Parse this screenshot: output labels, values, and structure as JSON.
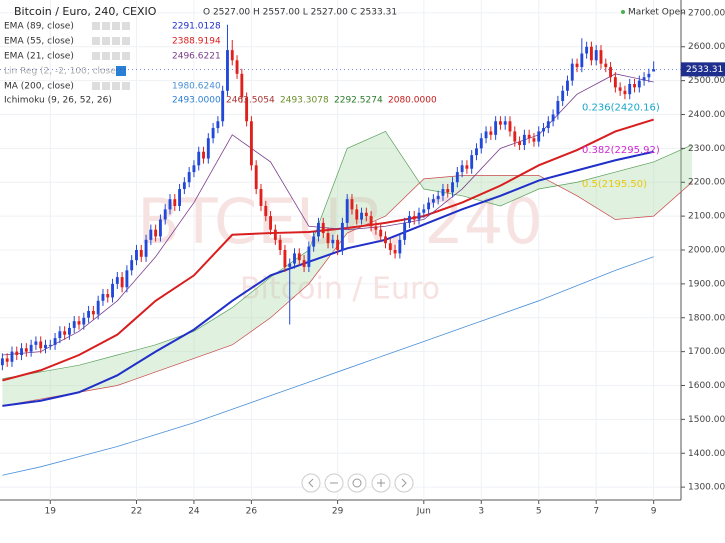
{
  "chart_data": {
    "type": "candlestick",
    "title": "Bitcoin / Euro, 240, CEXIO",
    "ohlc_text": "O 2527.00 H 2557.00 L 2527.00 C 2533.31",
    "status": "Market Open",
    "last_price": {
      "value": 2533.31,
      "label": "2533.31"
    },
    "watermark": [
      "BTCEUR, 240",
      "Bitcoin / Euro"
    ],
    "up_color": "#2248d8",
    "down_color": "#e0201c",
    "xlim": [
      -0.5,
      141.5
    ],
    "ylim": [
      1262,
      2738
    ],
    "grid": true,
    "xticks": [
      {
        "value": 10,
        "label": "19"
      },
      {
        "value": 28,
        "label": "22"
      },
      {
        "value": 40,
        "label": "24"
      },
      {
        "value": 52,
        "label": "26"
      },
      {
        "value": 70,
        "label": "29"
      },
      {
        "value": 88,
        "label": "Jun"
      },
      {
        "value": 100,
        "label": "3"
      },
      {
        "value": 112,
        "label": "5"
      },
      {
        "value": 124,
        "label": "7"
      },
      {
        "value": 136,
        "label": "9"
      }
    ],
    "yticks": [
      {
        "value": 1300,
        "label": "1300.00"
      },
      {
        "value": 1400,
        "label": "1400.00"
      },
      {
        "value": 1500,
        "label": "1500.00"
      },
      {
        "value": 1600,
        "label": "1600.00"
      },
      {
        "value": 1700,
        "label": "1700.00"
      },
      {
        "value": 1800,
        "label": "1800.00"
      },
      {
        "value": 1900,
        "label": "1900.00"
      },
      {
        "value": 2000,
        "label": "2000.00"
      },
      {
        "value": 2100,
        "label": "2100.00"
      },
      {
        "value": 2200,
        "label": "2200.00"
      },
      {
        "value": 2300,
        "label": "2300.00"
      },
      {
        "value": 2400,
        "label": "2400.00"
      },
      {
        "value": 2500,
        "label": "2500.00"
      },
      {
        "value": 2600,
        "label": "2600.00"
      },
      {
        "value": 2700,
        "label": "2700.00"
      }
    ],
    "ohlc": [
      [
        1660,
        1695,
        1645,
        1680
      ],
      [
        1680,
        1695,
        1655,
        1670
      ],
      [
        1670,
        1715,
        1655,
        1700
      ],
      [
        1700,
        1715,
        1675,
        1690
      ],
      [
        1690,
        1725,
        1675,
        1710
      ],
      [
        1710,
        1725,
        1685,
        1700
      ],
      [
        1700,
        1735,
        1685,
        1720
      ],
      [
        1720,
        1745,
        1705,
        1730
      ],
      [
        1730,
        1745,
        1695,
        1710
      ],
      [
        1710,
        1735,
        1695,
        1720
      ],
      [
        1720,
        1735,
        1705,
        1720
      ],
      [
        1720,
        1755,
        1705,
        1740
      ],
      [
        1740,
        1775,
        1725,
        1760
      ],
      [
        1760,
        1775,
        1735,
        1750
      ],
      [
        1750,
        1785,
        1735,
        1770
      ],
      [
        1770,
        1805,
        1755,
        1790
      ],
      [
        1790,
        1805,
        1765,
        1780
      ],
      [
        1780,
        1815,
        1765,
        1800
      ],
      [
        1800,
        1835,
        1785,
        1820
      ],
      [
        1820,
        1835,
        1795,
        1810
      ],
      [
        1810,
        1865,
        1795,
        1850
      ],
      [
        1850,
        1885,
        1835,
        1870
      ],
      [
        1870,
        1885,
        1845,
        1860
      ],
      [
        1860,
        1915,
        1845,
        1900
      ],
      [
        1900,
        1935,
        1885,
        1920
      ],
      [
        1920,
        1935,
        1875,
        1890
      ],
      [
        1890,
        1955,
        1875,
        1940
      ],
      [
        1940,
        1985,
        1925,
        1970
      ],
      [
        1970,
        2015,
        1955,
        2000
      ],
      [
        2000,
        2015,
        1965,
        1980
      ],
      [
        1980,
        2045,
        1965,
        2030
      ],
      [
        2030,
        2075,
        2015,
        2060
      ],
      [
        2060,
        2075,
        2025,
        2040
      ],
      [
        2040,
        2105,
        2025,
        2090
      ],
      [
        2090,
        2135,
        2075,
        2120
      ],
      [
        2120,
        2165,
        2105,
        2150
      ],
      [
        2150,
        2165,
        2115,
        2130
      ],
      [
        2130,
        2195,
        2115,
        2180
      ],
      [
        2180,
        2215,
        2165,
        2200
      ],
      [
        2200,
        2245,
        2185,
        2230
      ],
      [
        2230,
        2265,
        2215,
        2250
      ],
      [
        2250,
        2305,
        2235,
        2290
      ],
      [
        2290,
        2305,
        2255,
        2270
      ],
      [
        2270,
        2345,
        2255,
        2330
      ],
      [
        2330,
        2375,
        2315,
        2360
      ],
      [
        2360,
        2395,
        2345,
        2380
      ],
      [
        2380,
        2485,
        2365,
        2470
      ],
      [
        2470,
        2665,
        2455,
        2590
      ],
      [
        2590,
        2620,
        2545,
        2560
      ],
      [
        2560,
        2575,
        2505,
        2520
      ],
      [
        2520,
        2535,
        2435,
        2450
      ],
      [
        2450,
        2465,
        2365,
        2380
      ],
      [
        2380,
        2395,
        2235,
        2250
      ],
      [
        2250,
        2265,
        2165,
        2180
      ],
      [
        2180,
        2195,
        2115,
        2130
      ],
      [
        2130,
        2145,
        2085,
        2100
      ],
      [
        2100,
        2115,
        2045,
        2060
      ],
      [
        2060,
        2075,
        2015,
        2030
      ],
      [
        2030,
        2045,
        1985,
        2000
      ],
      [
        2000,
        2015,
        1935,
        1950
      ],
      [
        1950,
        1975,
        1780,
        1960
      ],
      [
        1960,
        2005,
        1945,
        1990
      ],
      [
        1990,
        2005,
        1955,
        1970
      ],
      [
        1970,
        1985,
        1935,
        1950
      ],
      [
        1950,
        2025,
        1935,
        2010
      ],
      [
        2010,
        2055,
        1995,
        2040
      ],
      [
        2040,
        2095,
        2025,
        2080
      ],
      [
        2080,
        2095,
        2035,
        2050
      ],
      [
        2050,
        2065,
        2005,
        2020
      ],
      [
        2020,
        2045,
        2005,
        2030
      ],
      [
        2030,
        2045,
        1985,
        2000
      ],
      [
        2000,
        2095,
        1985,
        2080
      ],
      [
        2080,
        2165,
        2065,
        2150
      ],
      [
        2150,
        2165,
        2105,
        2120
      ],
      [
        2120,
        2135,
        2075,
        2090
      ],
      [
        2090,
        2125,
        2075,
        2110
      ],
      [
        2110,
        2125,
        2085,
        2100
      ],
      [
        2100,
        2115,
        2055,
        2070
      ],
      [
        2070,
        2085,
        2045,
        2060
      ],
      [
        2060,
        2075,
        2025,
        2040
      ],
      [
        2040,
        2055,
        2005,
        2020
      ],
      [
        2020,
        2035,
        1985,
        2000
      ],
      [
        2000,
        2015,
        1975,
        1990
      ],
      [
        1990,
        2045,
        1975,
        2030
      ],
      [
        2030,
        2095,
        2015,
        2080
      ],
      [
        2080,
        2115,
        2065,
        2100
      ],
      [
        2100,
        2115,
        2075,
        2090
      ],
      [
        2090,
        2125,
        2075,
        2110
      ],
      [
        2110,
        2135,
        2095,
        2120
      ],
      [
        2120,
        2155,
        2105,
        2140
      ],
      [
        2140,
        2165,
        2125,
        2150
      ],
      [
        2150,
        2175,
        2135,
        2160
      ],
      [
        2160,
        2195,
        2145,
        2180
      ],
      [
        2180,
        2195,
        2155,
        2170
      ],
      [
        2170,
        2215,
        2155,
        2200
      ],
      [
        2200,
        2245,
        2185,
        2230
      ],
      [
        2230,
        2265,
        2215,
        2250
      ],
      [
        2250,
        2265,
        2225,
        2240
      ],
      [
        2240,
        2295,
        2225,
        2280
      ],
      [
        2280,
        2315,
        2265,
        2300
      ],
      [
        2300,
        2345,
        2285,
        2330
      ],
      [
        2330,
        2365,
        2315,
        2350
      ],
      [
        2350,
        2365,
        2325,
        2340
      ],
      [
        2340,
        2395,
        2325,
        2380
      ],
      [
        2380,
        2395,
        2355,
        2370
      ],
      [
        2370,
        2395,
        2355,
        2380
      ],
      [
        2380,
        2395,
        2335,
        2350
      ],
      [
        2350,
        2365,
        2305,
        2320
      ],
      [
        2320,
        2335,
        2295,
        2310
      ],
      [
        2310,
        2355,
        2295,
        2340
      ],
      [
        2340,
        2355,
        2315,
        2330
      ],
      [
        2330,
        2345,
        2305,
        2320
      ],
      [
        2320,
        2365,
        2305,
        2350
      ],
      [
        2350,
        2375,
        2335,
        2360
      ],
      [
        2360,
        2395,
        2345,
        2380
      ],
      [
        2380,
        2415,
        2365,
        2400
      ],
      [
        2400,
        2455,
        2385,
        2440
      ],
      [
        2440,
        2485,
        2425,
        2470
      ],
      [
        2470,
        2515,
        2455,
        2500
      ],
      [
        2500,
        2565,
        2485,
        2550
      ],
      [
        2550,
        2565,
        2525,
        2540
      ],
      [
        2540,
        2625,
        2525,
        2580
      ],
      [
        2580,
        2615,
        2565,
        2600
      ],
      [
        2600,
        2615,
        2545,
        2560
      ],
      [
        2560,
        2605,
        2545,
        2590
      ],
      [
        2590,
        2605,
        2535,
        2550
      ],
      [
        2550,
        2565,
        2525,
        2540
      ],
      [
        2540,
        2555,
        2495,
        2510
      ],
      [
        2510,
        2525,
        2465,
        2480
      ],
      [
        2480,
        2495,
        2455,
        2470
      ],
      [
        2470,
        2485,
        2445,
        2460
      ],
      [
        2460,
        2505,
        2445,
        2490
      ],
      [
        2490,
        2505,
        2465,
        2480
      ],
      [
        2480,
        2515,
        2465,
        2500
      ],
      [
        2500,
        2525,
        2485,
        2510
      ],
      [
        2510,
        2535,
        2495,
        2520
      ],
      [
        2527,
        2557,
        2527,
        2533.31
      ]
    ],
    "series": [
      {
        "name": "EMA (89, close)",
        "last": "2291.0128",
        "color": "#1f2fc8",
        "width": 2,
        "x": [
          0,
          8,
          16,
          24,
          32,
          40,
          48,
          56,
          64,
          72,
          80,
          88,
          96,
          104,
          112,
          120,
          128,
          136
        ],
        "values": [
          1540,
          1555,
          1580,
          1630,
          1700,
          1765,
          1850,
          1925,
          1965,
          2005,
          2030,
          2075,
          2120,
          2160,
          2205,
          2235,
          2265,
          2290
        ]
      },
      {
        "name": "EMA (55, close)",
        "last": "2388.9194",
        "color": "#d81e1e",
        "width": 2,
        "x": [
          0,
          8,
          16,
          24,
          32,
          40,
          48,
          56,
          64,
          72,
          80,
          88,
          96,
          104,
          112,
          120,
          128,
          136
        ],
        "values": [
          1615,
          1645,
          1690,
          1750,
          1850,
          1925,
          2045,
          2050,
          2053,
          2065,
          2080,
          2100,
          2140,
          2190,
          2250,
          2295,
          2350,
          2385
        ]
      },
      {
        "name": "EMA (21, close)",
        "last": "2496.6221",
        "color": "#7a3d8c",
        "width": 0.8,
        "x": [
          0,
          8,
          16,
          24,
          32,
          40,
          48,
          56,
          64,
          72,
          80,
          88,
          96,
          104,
          112,
          120,
          128,
          136
        ],
        "values": [
          1690,
          1700,
          1760,
          1850,
          1980,
          2140,
          2340,
          2260,
          2070,
          2060,
          2070,
          2090,
          2180,
          2300,
          2340,
          2460,
          2520,
          2496
        ]
      },
      {
        "name": "MA (200, close)",
        "last": "1980.6240",
        "color": "#4a90d9",
        "width": 0.8,
        "x": [
          0,
          8,
          16,
          24,
          32,
          40,
          48,
          56,
          64,
          72,
          80,
          88,
          96,
          104,
          112,
          120,
          128,
          136
        ],
        "values": [
          1335,
          1360,
          1390,
          1420,
          1455,
          1490,
          1530,
          1570,
          1610,
          1650,
          1690,
          1730,
          1770,
          1810,
          1850,
          1895,
          1940,
          1980
        ]
      }
    ],
    "lin_reg_label": "Lin Reg (2, -2, 100, close)",
    "ichimoku": {
      "name": "Ichimoku (9, 26, 52, 26)",
      "lasts": [
        "2493.0000",
        "2463.5054",
        "2493.3078",
        "2292.5274",
        "2080.0000"
      ],
      "last_colors": [
        "#2a7fd4",
        "#a33",
        "#6a8f2a",
        "#2a7a2a",
        "#c21b1b"
      ],
      "fill": "#a5d6a7",
      "x": [
        0,
        8,
        16,
        24,
        32,
        40,
        48,
        56,
        64,
        72,
        80,
        88,
        96,
        104,
        112,
        120,
        128,
        136,
        144
      ],
      "span_a": [
        1620,
        1640,
        1660,
        1690,
        1720,
        1760,
        1830,
        1920,
        2000,
        2300,
        2350,
        2180,
        2160,
        2130,
        2180,
        2200,
        2230,
        2260,
        2310
      ],
      "span_b": [
        1540,
        1560,
        1580,
        1600,
        1640,
        1680,
        1720,
        1800,
        1900,
        2050,
        2100,
        2210,
        2220,
        2220,
        2220,
        2160,
        2090,
        2100,
        2200
      ]
    },
    "fib_labels": [
      {
        "label": "0.236(2420.16)",
        "price": 2420.16,
        "color": "#19a7c9"
      },
      {
        "label": "0.382(2295.92)",
        "price": 2295.92,
        "color": "#d12ad1"
      },
      {
        "label": "0.5(2195.50)",
        "price": 2195.5,
        "color": "#e8c90d"
      }
    ]
  }
}
